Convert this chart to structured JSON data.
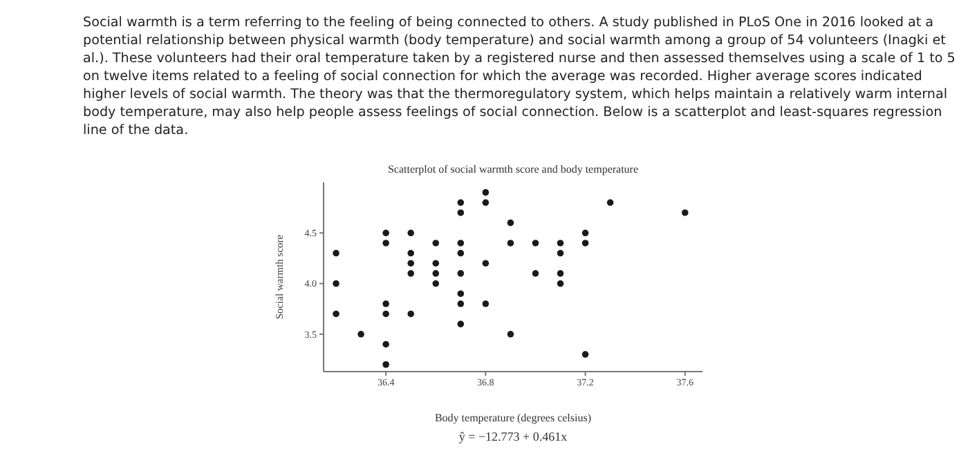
{
  "chart_data": {
    "type": "scatter",
    "title": "Scatterplot of social warmth score and body temperature",
    "xlabel": "Body temperature (degrees celsius)",
    "ylabel": "Social warmth score",
    "annotations": [
      "Social warmth is a term referring to the feeling of being connected to others. A study published in PLoS One in 2016 looked at a potential relationship between physical warmth (body temperature) and social warmth among a group of 54 volunteers (Inagki et al.). These volunteers had their oral temperature taken by a registered nurse and then assessed themselves using a scale of 1 to 5 on twelve items related to a feeling of social connection for which the average was recorded. Higher average scores indicated higher levels of social warmth. The theory was that the thermoregulatory system, which helps maintain a relatively warm internal body temperature, may also help people assess feelings of social connection. Below is a scatterplot and least-squares regression line of the data.",
      "ŷ = −12.773 + 0.461x"
    ],
    "marker": "circle",
    "xlim": [
      36.15,
      37.67
    ],
    "xticks": [
      36.4,
      36.8,
      37.2,
      37.6
    ],
    "ylim": [
      3.13,
      5.0
    ],
    "yticks": [
      {
        "value": 3.5,
        "label": "3.5"
      },
      {
        "value": 4.0,
        "label": "4.0"
      },
      {
        "value": 4.5,
        "label": "4.5"
      }
    ],
    "series": [
      {
        "color": "#1a1a1a",
        "x": [
          36.2,
          36.2,
          36.2,
          36.3,
          36.4,
          36.4,
          36.4,
          36.4,
          36.4,
          36.4,
          36.5,
          36.5,
          36.5,
          36.5,
          36.5,
          36.6,
          36.6,
          36.6,
          36.6,
          36.7,
          36.7,
          36.7,
          36.7,
          36.7,
          36.7,
          36.7,
          36.7,
          36.8,
          36.8,
          36.8,
          36.8,
          36.9,
          36.9,
          36.9,
          37.0,
          37.0,
          37.1,
          37.1,
          37.1,
          37.1,
          37.2,
          37.2,
          37.2,
          37.3,
          37.6
        ],
        "values": [
          4.3,
          4.0,
          3.7,
          3.5,
          4.5,
          4.4,
          3.8,
          3.7,
          3.4,
          3.2,
          4.5,
          4.3,
          4.2,
          4.1,
          3.7,
          4.4,
          4.2,
          4.1,
          4.0,
          4.8,
          4.7,
          4.4,
          4.3,
          4.1,
          3.9,
          3.8,
          3.6,
          4.9,
          4.8,
          4.2,
          3.8,
          4.6,
          4.4,
          3.5,
          4.4,
          4.1,
          4.4,
          4.3,
          4.1,
          4.0,
          4.5,
          4.4,
          3.3,
          4.8,
          4.7
        ]
      }
    ]
  }
}
